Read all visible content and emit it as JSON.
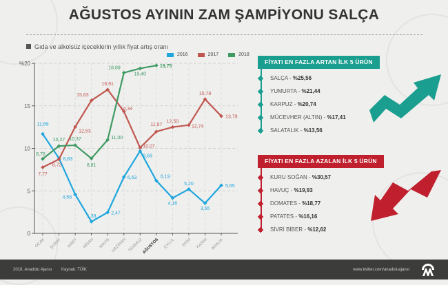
{
  "title": "AĞUSTOS AYININ ZAM ŞAMPİYONU SALÇA",
  "subtitle": "Gıda ve alkolsüz içeceklerin yıllık fiyat artış oranı",
  "legend": [
    {
      "label": "2016",
      "color": "#1ea6dd"
    },
    {
      "label": "2017",
      "color": "#c0574f"
    },
    {
      "label": "2018",
      "color": "#3e9a62"
    }
  ],
  "chart_data": {
    "type": "line",
    "title": "Gıda ve alkolsüz içeceklerin yıllık fiyat artış oranı",
    "xlabel": "",
    "ylabel": "%",
    "ylim": [
      0,
      20
    ],
    "yticks": [
      "0",
      "5",
      "10",
      "15",
      "%20"
    ],
    "grid": true,
    "legend_position": "top",
    "categories": [
      "OCAK",
      "ŞUBAT",
      "MART",
      "NİSAN",
      "MAYIS",
      "HAZİRAN",
      "TEMMUZ",
      "AĞUSTOS",
      "EYLÜL",
      "EKİM",
      "KASIM",
      "ARALIK"
    ],
    "highlight_category": "AĞUSTOS",
    "series": [
      {
        "name": "2016",
        "color": "#1ea6dd",
        "values": [
          11.69,
          8.83,
          4.58,
          1.38,
          2.47,
          6.63,
          9.69,
          6.19,
          4.16,
          5.2,
          3.55,
          5.65
        ],
        "labels": [
          "11,69",
          "8,83",
          "4,58",
          "1,38",
          "2,47",
          "6,63",
          "9,69",
          "6,19",
          "4,16",
          "5,20",
          "3,55",
          "5,65"
        ]
      },
      {
        "name": "2017",
        "color": "#c0574f",
        "values": [
          7.77,
          8.72,
          12.53,
          15.63,
          16.91,
          14.34,
          10.07,
          11.97,
          12.5,
          12.74,
          15.78,
          13.79
        ],
        "labels": [
          "7,77",
          "8,72",
          "12,53",
          "15,63",
          "16,91",
          "14,34",
          "10,07",
          "11,97",
          "12,50",
          "12,74",
          "15,78",
          "13,79"
        ]
      },
      {
        "name": "2018",
        "color": "#3e9a62",
        "values": [
          8.76,
          10.27,
          10.37,
          8.81,
          11.0,
          18.89,
          19.4,
          19.75,
          null,
          null,
          null,
          null
        ],
        "labels": [
          "8,76",
          "10,27",
          "10,37",
          "8,81",
          "11,00",
          "18,89",
          "19,40",
          "19,75",
          null,
          null,
          null,
          null
        ]
      }
    ]
  },
  "increase_panel": {
    "header": "FİYATI EN FAZLA ARTAN İLK 5 ÜRÜN",
    "color": "#1a9e8f",
    "items": [
      {
        "name": "SALÇA",
        "value": "%25,56"
      },
      {
        "name": "YUMURTA",
        "value": "%21,44"
      },
      {
        "name": "KARPUZ",
        "value": "%20,74"
      },
      {
        "name": "MÜCEVHER (ALTIN)",
        "value": "%17,41"
      },
      {
        "name": "SALATALIK",
        "value": "%13,56"
      }
    ]
  },
  "decrease_panel": {
    "header": "FİYATI EN FAZLA AZALAN İLK 5 ÜRÜN",
    "color": "#c0202e",
    "items": [
      {
        "name": "KURU SOĞAN",
        "value": "%30,57"
      },
      {
        "name": "HAVUÇ",
        "value": "%19,93"
      },
      {
        "name": "DOMATES",
        "value": "%18,77"
      },
      {
        "name": "PATATES",
        "value": "%16,16"
      },
      {
        "name": "SİVRİ BİBER",
        "value": "%12,62"
      }
    ]
  },
  "footer": {
    "copyright": "2018, Anadolu Ajansı",
    "source": "Kaynak: TÜİK",
    "twitter": "www.twitter.com/anadoluajansi",
    "logo": "AA"
  }
}
